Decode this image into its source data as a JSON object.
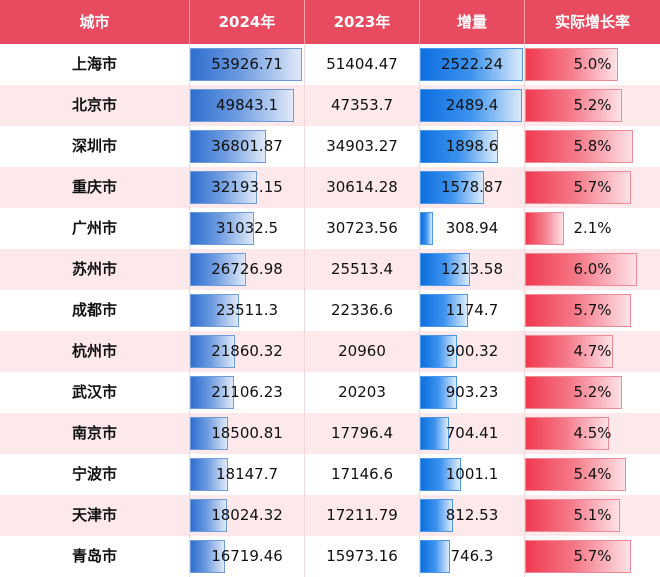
{
  "chart_data": {
    "type": "table",
    "columns": [
      "城市",
      "2024年",
      "2023年",
      "增量",
      "实际增长率"
    ],
    "rows": [
      {
        "city": "上海市",
        "v2024": "53926.71",
        "v2023": "51404.47",
        "inc": "2522.24",
        "rate": "5.0%"
      },
      {
        "city": "北京市",
        "v2024": "49843.1",
        "v2023": "47353.7",
        "inc": "2489.4",
        "rate": "5.2%"
      },
      {
        "city": "深圳市",
        "v2024": "36801.87",
        "v2023": "34903.27",
        "inc": "1898.6",
        "rate": "5.8%"
      },
      {
        "city": "重庆市",
        "v2024": "32193.15",
        "v2023": "30614.28",
        "inc": "1578.87",
        "rate": "5.7%"
      },
      {
        "city": "广州市",
        "v2024": "31032.5",
        "v2023": "30723.56",
        "inc": "308.94",
        "rate": "2.1%"
      },
      {
        "city": "苏州市",
        "v2024": "26726.98",
        "v2023": "25513.4",
        "inc": "1213.58",
        "rate": "6.0%"
      },
      {
        "city": "成都市",
        "v2024": "23511.3",
        "v2023": "22336.6",
        "inc": "1174.7",
        "rate": "5.7%"
      },
      {
        "city": "杭州市",
        "v2024": "21860.32",
        "v2023": "20960",
        "inc": "900.32",
        "rate": "4.7%"
      },
      {
        "city": "武汉市",
        "v2024": "21106.23",
        "v2023": "20203",
        "inc": "903.23",
        "rate": "5.2%"
      },
      {
        "city": "南京市",
        "v2024": "18500.81",
        "v2023": "17796.4",
        "inc": "704.41",
        "rate": "4.5%"
      },
      {
        "city": "宁波市",
        "v2024": "18147.7",
        "v2023": "17146.6",
        "inc": "1001.1",
        "rate": "5.4%"
      },
      {
        "city": "天津市",
        "v2024": "18024.32",
        "v2023": "17211.79",
        "inc": "812.53",
        "rate": "5.1%"
      },
      {
        "city": "青岛市",
        "v2024": "16719.46",
        "v2023": "15973.16",
        "inc": "746.3",
        "rate": "5.7%"
      }
    ]
  },
  "colors": {
    "header": "#e84a5f",
    "bar_2024": "#2f6fd0",
    "bar_increase": "#0d6fe0",
    "bar_rate": "#f0394f",
    "row_alt": "#fde9ec"
  }
}
